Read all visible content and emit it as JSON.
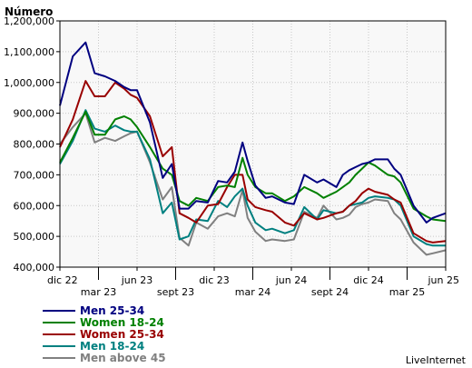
{
  "chart_data": {
    "type": "line",
    "ylabel": "Número",
    "ylim": [
      400000,
      1200000
    ],
    "y_ticks": [
      "400,000",
      "500,000",
      "600,000",
      "700,000",
      "800,000",
      "900,000",
      "1,000,000",
      "1,100,000",
      "1,200,000"
    ],
    "x_range": [
      0,
      30
    ],
    "x_ticks": [
      {
        "x": 0,
        "label": "dic 22",
        "row": 0
      },
      {
        "x": 3,
        "label": "mar 23",
        "row": 1
      },
      {
        "x": 6,
        "label": "jun 23",
        "row": 0
      },
      {
        "x": 9,
        "label": "sept 23",
        "row": 1
      },
      {
        "x": 12,
        "label": "dic 23",
        "row": 0
      },
      {
        "x": 15,
        "label": "mar 24",
        "row": 1
      },
      {
        "x": 18,
        "label": "jun 24",
        "row": 0
      },
      {
        "x": 21,
        "label": "sept 24",
        "row": 1
      },
      {
        "x": 24,
        "label": "dic 24",
        "row": 0
      },
      {
        "x": 27,
        "label": "mar 25",
        "row": 1
      },
      {
        "x": 30,
        "label": "jun 25",
        "row": 0
      }
    ],
    "grid": true,
    "legend": "bottom-left",
    "series": [
      {
        "name": "Men 25-34",
        "color": "#000080",
        "x": [
          0,
          1,
          2,
          2.7,
          3.5,
          4.3,
          5,
          5.5,
          6,
          7,
          8,
          8.7,
          9.3,
          10,
          10.6,
          11.5,
          12.3,
          13,
          13.6,
          14.2,
          14.6,
          15.2,
          16,
          16.5,
          17.5,
          18.2,
          19,
          20,
          20.5,
          21.5,
          22,
          22.5,
          23,
          23.5,
          24,
          24.5,
          25.5,
          26,
          26.5,
          27.5,
          28.5,
          29,
          30
        ],
        "y": [
          925000,
          1085000,
          1130000,
          1030000,
          1020000,
          1005000,
          985000,
          975000,
          975000,
          870000,
          690000,
          735000,
          590000,
          590000,
          615000,
          610000,
          680000,
          675000,
          710000,
          805000,
          745000,
          665000,
          625000,
          630000,
          610000,
          605000,
          700000,
          675000,
          685000,
          660000,
          700000,
          715000,
          725000,
          735000,
          740000,
          750000,
          750000,
          720000,
          700000,
          600000,
          545000,
          560000,
          575000
        ]
      },
      {
        "name": "Women 18-24",
        "color": "#008000",
        "x": [
          0,
          1,
          2,
          2.7,
          3.5,
          4.3,
          5,
          5.5,
          6,
          7,
          8,
          8.7,
          9.3,
          10,
          10.6,
          11.5,
          12.3,
          13,
          13.6,
          14.2,
          14.6,
          15.2,
          16,
          16.5,
          17.5,
          18.2,
          19,
          20,
          20.5,
          21.5,
          22,
          22.5,
          23,
          23.5,
          24,
          24.5,
          25.5,
          26,
          26.5,
          27.5,
          28.5,
          29,
          30
        ],
        "y": [
          740000,
          820000,
          905000,
          830000,
          830000,
          880000,
          890000,
          880000,
          855000,
          790000,
          720000,
          700000,
          615000,
          600000,
          625000,
          615000,
          660000,
          665000,
          660000,
          755000,
          700000,
          660000,
          640000,
          640000,
          615000,
          630000,
          660000,
          640000,
          625000,
          645000,
          660000,
          675000,
          700000,
          720000,
          740000,
          730000,
          700000,
          695000,
          675000,
          590000,
          565000,
          555000,
          550000
        ]
      },
      {
        "name": "Women 25-34",
        "color": "#990000",
        "x": [
          0,
          1,
          2,
          2.7,
          3.5,
          4.3,
          5,
          5.5,
          6,
          7,
          8,
          8.7,
          9.3,
          10,
          10.6,
          11.5,
          12.3,
          13,
          13.6,
          14.2,
          14.6,
          15.2,
          16,
          16.5,
          17.5,
          18.2,
          19,
          20,
          20.5,
          21.5,
          22,
          22.5,
          23,
          23.5,
          24,
          24.5,
          25.5,
          26,
          26.5,
          27.5,
          28.5,
          29,
          30
        ],
        "y": [
          790000,
          880000,
          1005000,
          955000,
          955000,
          1000000,
          980000,
          960000,
          950000,
          890000,
          760000,
          790000,
          575000,
          560000,
          545000,
          600000,
          605000,
          660000,
          700000,
          700000,
          620000,
          595000,
          585000,
          580000,
          545000,
          535000,
          575000,
          555000,
          560000,
          575000,
          580000,
          600000,
          615000,
          640000,
          655000,
          645000,
          635000,
          620000,
          610000,
          510000,
          485000,
          480000,
          485000
        ]
      },
      {
        "name": "Men 18-24",
        "color": "#008080",
        "x": [
          0,
          1,
          2,
          2.7,
          3.5,
          4.3,
          5,
          5.5,
          6,
          7,
          8,
          8.7,
          9.3,
          10,
          10.6,
          11.5,
          12.3,
          13,
          13.6,
          14.2,
          14.6,
          15.2,
          16,
          16.5,
          17.5,
          18.2,
          19,
          20,
          20.5,
          21.5,
          22,
          22.5,
          23,
          23.5,
          24,
          24.5,
          25.5,
          26,
          26.5,
          27.5,
          28.5,
          29,
          30
        ],
        "y": [
          735000,
          810000,
          910000,
          850000,
          840000,
          860000,
          845000,
          840000,
          840000,
          750000,
          575000,
          610000,
          490000,
          500000,
          555000,
          550000,
          615000,
          595000,
          630000,
          655000,
          600000,
          545000,
          520000,
          525000,
          510000,
          520000,
          595000,
          555000,
          585000,
          575000,
          580000,
          600000,
          605000,
          610000,
          625000,
          630000,
          625000,
          620000,
          600000,
          500000,
          475000,
          470000,
          470000
        ]
      },
      {
        "name": "Men above 45",
        "color": "#808080",
        "x": [
          0,
          1,
          2,
          2.7,
          3.5,
          4.3,
          5,
          5.5,
          6,
          7,
          8,
          8.7,
          9.3,
          10,
          10.6,
          11.5,
          12.3,
          13,
          13.6,
          14.2,
          14.6,
          15.2,
          16,
          16.5,
          17.5,
          18.2,
          19,
          20,
          20.5,
          21.5,
          22,
          22.5,
          23,
          23.5,
          24,
          24.5,
          25.5,
          26,
          26.5,
          27.5,
          28.5,
          29,
          30
        ],
        "y": [
          800000,
          855000,
          900000,
          805000,
          820000,
          810000,
          825000,
          835000,
          840000,
          740000,
          620000,
          660000,
          495000,
          470000,
          545000,
          525000,
          565000,
          575000,
          565000,
          650000,
          560000,
          515000,
          485000,
          490000,
          485000,
          490000,
          580000,
          560000,
          600000,
          555000,
          560000,
          570000,
          595000,
          605000,
          610000,
          620000,
          615000,
          575000,
          555000,
          480000,
          440000,
          445000,
          455000
        ]
      }
    ]
  },
  "branding": {
    "label": "LiveInternet"
  }
}
